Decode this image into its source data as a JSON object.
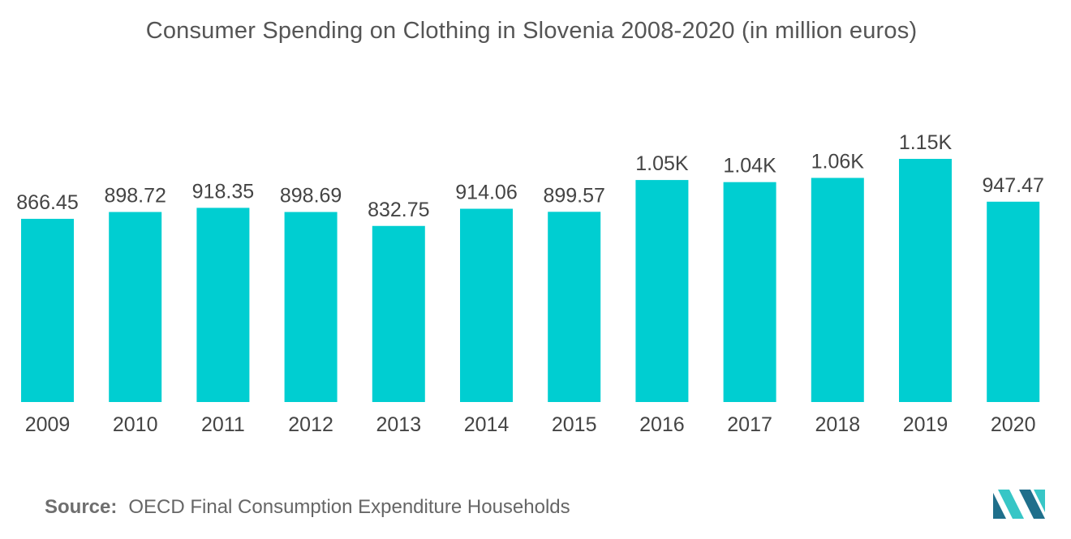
{
  "title": "Consumer Spending on Clothing in Slovenia 2008-2020  (in million euros)",
  "source": {
    "label": "Source:",
    "text": "OECD Final Consumption Expenditure Households"
  },
  "colors": {
    "bar": "#00CED1",
    "text": "#444444",
    "title": "#555555",
    "logo_dark": "#1f6f8b",
    "logo_light": "#37c6c6"
  },
  "chart_data": {
    "type": "bar",
    "title": "Consumer Spending on Clothing in Slovenia 2008-2020  (in million euros)",
    "xlabel": "",
    "ylabel": "",
    "categories": [
      "2009",
      "2010",
      "2011",
      "2012",
      "2013",
      "2014",
      "2015",
      "2016",
      "2017",
      "2018",
      "2019",
      "2020"
    ],
    "values": [
      866.45,
      898.72,
      918.35,
      898.69,
      832.75,
      914.06,
      899.57,
      1050,
      1040,
      1060,
      1150,
      947.47
    ],
    "data_labels": [
      "866.45",
      "898.72",
      "918.35",
      "898.69",
      "832.75",
      "914.06",
      "899.57",
      "1.05K",
      "1.04K",
      "1.06K",
      "1.15K",
      "947.47"
    ],
    "ylim": [
      0,
      1150
    ],
    "grid": false,
    "legend": "none"
  }
}
